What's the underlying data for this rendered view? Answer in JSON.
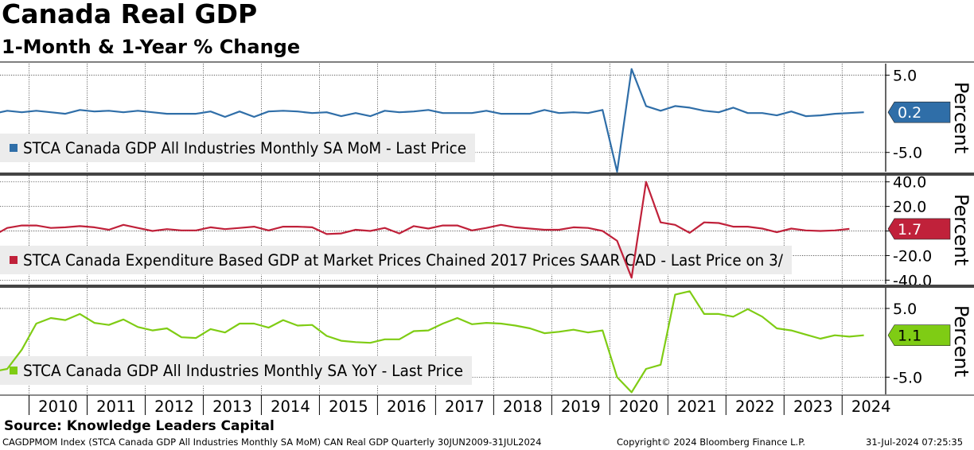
{
  "header": {
    "title": "Canada Real GDP",
    "subtitle": "1-Month & 1-Year % Change"
  },
  "footer": {
    "source": "Source: Knowledge Leaders Capital",
    "index_info": "CAGDPMOM Index (STCA Canada GDP All Industries Monthly SA MoM) CAN Real GDP  Quarterly 30JUN2009-31JUL2024",
    "copyright": "Copyright© 2024 Bloomberg Finance L.P.",
    "timestamp": "31-Jul-2024 07:25:35"
  },
  "colors": {
    "mom": "#2f6ea8",
    "expenditure": "#c0213a",
    "yoy": "#7fcc14",
    "grid": "#000000",
    "legend_bg": "#ececec"
  },
  "chart_data": [
    {
      "type": "line",
      "series": [
        {
          "name": "STCA Canada GDP All Industries Monthly SA MoM - Last Price",
          "x": [
            "2009Q2",
            "2009Q3",
            "2009Q4",
            "2010Q1",
            "2010Q2",
            "2010Q3",
            "2010Q4",
            "2011Q1",
            "2011Q2",
            "2011Q3",
            "2011Q4",
            "2012Q1",
            "2012Q2",
            "2012Q3",
            "2012Q4",
            "2013Q1",
            "2013Q2",
            "2013Q3",
            "2013Q4",
            "2014Q1",
            "2014Q2",
            "2014Q3",
            "2014Q4",
            "2015Q1",
            "2015Q2",
            "2015Q3",
            "2015Q4",
            "2016Q1",
            "2016Q2",
            "2016Q3",
            "2016Q4",
            "2017Q1",
            "2017Q2",
            "2017Q3",
            "2017Q4",
            "2018Q1",
            "2018Q2",
            "2018Q3",
            "2018Q4",
            "2019Q1",
            "2019Q2",
            "2019Q3",
            "2019Q4",
            "2020Q1",
            "2020Q2",
            "2020Q3",
            "2020Q4",
            "2021Q1",
            "2021Q2",
            "2021Q3",
            "2021Q4",
            "2022Q1",
            "2022Q2",
            "2022Q3",
            "2022Q4",
            "2023Q1",
            "2023Q2",
            "2023Q3",
            "2023Q4",
            "2024Q1",
            "2024Q2"
          ],
          "values": [
            0.0,
            0.4,
            0.2,
            0.4,
            0.2,
            0.0,
            0.5,
            0.3,
            0.4,
            0.2,
            0.4,
            0.2,
            0.0,
            0.0,
            0.0,
            0.3,
            -0.4,
            0.3,
            -0.4,
            0.3,
            0.4,
            0.3,
            0.1,
            0.2,
            -0.3,
            0.1,
            -0.3,
            0.4,
            0.2,
            0.3,
            0.5,
            0.1,
            0.1,
            0.1,
            0.4,
            0.0,
            0.0,
            0.0,
            0.5,
            0.1,
            0.2,
            0.1,
            0.5,
            -7.5,
            5.8,
            1.0,
            0.4,
            1.0,
            0.8,
            0.4,
            0.2,
            0.8,
            0.1,
            0.1,
            -0.2,
            0.3,
            -0.3,
            -0.2,
            0.0,
            0.1,
            0.2
          ]
        }
      ],
      "ylim": [
        -7.5,
        6.5
      ],
      "y_ticks": [
        "5.0",
        "-5.0"
      ],
      "y_tick_values": [
        5,
        -5
      ],
      "ylabel": "Percent",
      "last_value_label": "0.2",
      "legend_placement": "bottom-left"
    },
    {
      "type": "line",
      "series": [
        {
          "name": "STCA Canada Expenditure Based GDP at Market Prices Chained 2017 Prices SAAR CAD - Last Price on 3/",
          "x": [
            "2009Q2",
            "2009Q3",
            "2009Q4",
            "2010Q1",
            "2010Q2",
            "2010Q3",
            "2010Q4",
            "2011Q1",
            "2011Q2",
            "2011Q3",
            "2011Q4",
            "2012Q1",
            "2012Q2",
            "2012Q3",
            "2012Q4",
            "2013Q1",
            "2013Q2",
            "2013Q3",
            "2013Q4",
            "2014Q1",
            "2014Q2",
            "2014Q3",
            "2014Q4",
            "2015Q1",
            "2015Q2",
            "2015Q3",
            "2015Q4",
            "2016Q1",
            "2016Q2",
            "2016Q3",
            "2016Q4",
            "2017Q1",
            "2017Q2",
            "2017Q3",
            "2017Q4",
            "2018Q1",
            "2018Q2",
            "2018Q3",
            "2018Q4",
            "2019Q1",
            "2019Q2",
            "2019Q3",
            "2019Q4",
            "2020Q1",
            "2020Q2",
            "2020Q3",
            "2020Q4",
            "2021Q1",
            "2021Q2",
            "2021Q3",
            "2021Q4",
            "2022Q1",
            "2022Q2",
            "2022Q3",
            "2022Q4",
            "2023Q1",
            "2023Q2",
            "2023Q3",
            "2023Q4",
            "2024Q1"
          ],
          "values": [
            -4.0,
            2.5,
            4.5,
            4.5,
            2.5,
            3.0,
            4.0,
            3.0,
            1.0,
            5.0,
            2.5,
            0.0,
            1.5,
            0.5,
            0.5,
            3.0,
            1.5,
            2.5,
            3.5,
            0.5,
            3.5,
            3.5,
            3.0,
            -2.5,
            -2.0,
            1.0,
            0.0,
            2.5,
            -2.0,
            4.0,
            2.0,
            4.5,
            4.5,
            0.5,
            2.5,
            5.0,
            3.0,
            2.0,
            1.0,
            1.0,
            3.0,
            2.5,
            0.0,
            -8.0,
            -38.0,
            40.0,
            7.0,
            5.0,
            -1.5,
            7.0,
            6.5,
            3.5,
            3.5,
            2.0,
            -1.0,
            2.0,
            0.5,
            0.0,
            0.5,
            1.7
          ]
        }
      ],
      "ylim": [
        -43,
        45
      ],
      "y_ticks": [
        "40.0",
        "20.0",
        "0.0",
        "-20.0",
        "-40.0"
      ],
      "y_tick_values": [
        40,
        20,
        0,
        -20,
        -40
      ],
      "ylabel": "Percent",
      "last_value_label": "1.7",
      "legend_placement": "bottom-left"
    },
    {
      "type": "line",
      "series": [
        {
          "name": "STCA Canada GDP All Industries Monthly SA YoY - Last Price",
          "x": [
            "2009Q2",
            "2009Q3",
            "2009Q4",
            "2010Q1",
            "2010Q2",
            "2010Q3",
            "2010Q4",
            "2011Q1",
            "2011Q2",
            "2011Q3",
            "2011Q4",
            "2012Q1",
            "2012Q2",
            "2012Q3",
            "2012Q4",
            "2013Q1",
            "2013Q2",
            "2013Q3",
            "2013Q4",
            "2014Q1",
            "2014Q2",
            "2014Q3",
            "2014Q4",
            "2015Q1",
            "2015Q2",
            "2015Q3",
            "2015Q4",
            "2016Q1",
            "2016Q2",
            "2016Q3",
            "2016Q4",
            "2017Q1",
            "2017Q2",
            "2017Q3",
            "2017Q4",
            "2018Q1",
            "2018Q2",
            "2018Q3",
            "2018Q4",
            "2019Q1",
            "2019Q2",
            "2019Q3",
            "2019Q4",
            "2020Q1",
            "2020Q2",
            "2020Q3",
            "2020Q4",
            "2021Q1",
            "2021Q2",
            "2021Q3",
            "2021Q4",
            "2022Q1",
            "2022Q2",
            "2022Q3",
            "2022Q4",
            "2023Q1",
            "2023Q2",
            "2023Q3",
            "2023Q4",
            "2024Q1",
            "2024Q2"
          ],
          "values": [
            -4.2,
            -3.8,
            -1.0,
            2.8,
            3.6,
            3.3,
            4.2,
            2.9,
            2.6,
            3.4,
            2.3,
            1.8,
            2.1,
            0.8,
            0.7,
            2.0,
            1.5,
            2.8,
            2.8,
            2.2,
            3.3,
            2.5,
            2.6,
            1.0,
            0.3,
            0.1,
            0.0,
            0.5,
            0.5,
            1.7,
            1.8,
            2.8,
            3.6,
            2.7,
            2.9,
            2.8,
            2.5,
            2.1,
            1.4,
            1.6,
            1.9,
            1.5,
            1.8,
            -5.0,
            -7.2,
            -3.8,
            -3.2,
            7.0,
            7.5,
            4.2,
            4.2,
            3.8,
            4.9,
            3.8,
            2.1,
            1.8,
            1.2,
            0.6,
            1.1,
            0.9,
            1.1
          ]
        }
      ],
      "ylim": [
        -7.5,
        8
      ],
      "y_ticks": [
        "5.0",
        "-5.0"
      ],
      "y_tick_values": [
        5,
        -5
      ],
      "ylabel": "Percent",
      "last_value_label": "1.1",
      "legend_placement": "bottom-left"
    }
  ],
  "x_axis": {
    "year_labels": [
      "2010",
      "2011",
      "2012",
      "2013",
      "2014",
      "2015",
      "2016",
      "2017",
      "2018",
      "2019",
      "2020",
      "2021",
      "2022",
      "2023",
      "2024"
    ],
    "year_values": [
      2010,
      2011,
      2012,
      2013,
      2014,
      2015,
      2016,
      2017,
      2018,
      2019,
      2020,
      2021,
      2022,
      2023,
      2024
    ],
    "range": [
      2009.5,
      2024.75
    ]
  }
}
